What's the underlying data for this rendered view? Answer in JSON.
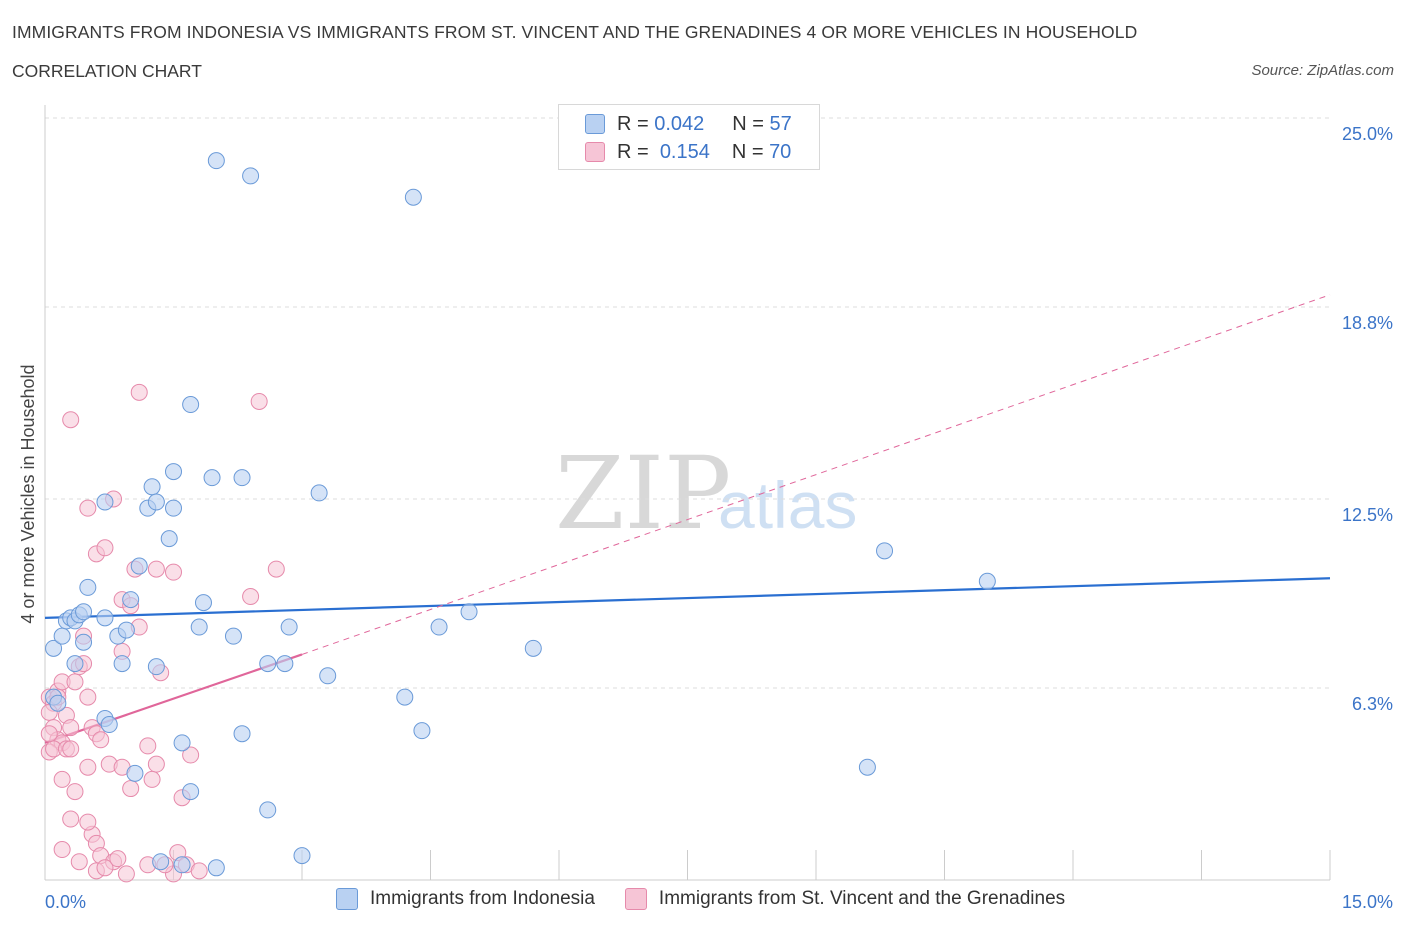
{
  "header": {
    "title": "IMMIGRANTS FROM INDONESIA VS IMMIGRANTS FROM ST. VINCENT AND THE GRENADINES 4 OR MORE VEHICLES IN HOUSEHOLD",
    "subtitle": "CORRELATION CHART",
    "source": "Source: ZipAtlas.com"
  },
  "watermark": {
    "zip": "ZIP",
    "atlas": "atlas"
  },
  "legend": {
    "rows": [
      {
        "r_label": "R =",
        "r_value": "0.042",
        "n_label": "N =",
        "n_value": "57"
      },
      {
        "r_label": "R =",
        "r_value": "0.154",
        "n_label": "N =",
        "n_value": "70"
      }
    ]
  },
  "bottom_legend": {
    "series1": "Immigrants from Indonesia",
    "series2": "Immigrants from St. Vincent and the Grenadines"
  },
  "colors": {
    "blue_fill": "#b9d1f2",
    "blue_stroke": "#6a9ad8",
    "blue_line": "#2a6fd1",
    "pink_fill": "#f6c5d6",
    "pink_stroke": "#e68aab",
    "pink_line": "#e0669a",
    "grid": "#dddddd",
    "tick_text": "#3b74c8"
  },
  "chart_data": {
    "type": "scatter",
    "title": "IMMIGRANTS FROM INDONESIA VS IMMIGRANTS FROM ST. VINCENT AND THE GRENADINES 4 OR MORE VEHICLES IN HOUSEHOLD",
    "xlabel": "",
    "ylabel": "4 or more Vehicles in Household",
    "xlim": [
      0,
      15
    ],
    "ylim": [
      0,
      25
    ],
    "x_tick_labels": [
      "0.0%",
      "15.0%"
    ],
    "y_ticks": [
      6.3,
      12.5,
      18.8,
      25.0
    ],
    "y_tick_labels": [
      "6.3%",
      "12.5%",
      "18.8%",
      "25.0%"
    ],
    "grid": true,
    "legend_position": "top-center",
    "series": [
      {
        "name": "Immigrants from Indonesia",
        "R": 0.042,
        "N": 57,
        "trend": {
          "x": [
            0,
            15
          ],
          "y": [
            8.6,
            9.9
          ],
          "style": "solid"
        },
        "points": [
          [
            0.1,
            7.6
          ],
          [
            0.2,
            8.0
          ],
          [
            0.25,
            8.5
          ],
          [
            0.3,
            8.6
          ],
          [
            0.35,
            8.5
          ],
          [
            0.4,
            8.7
          ],
          [
            0.45,
            8.8
          ],
          [
            0.5,
            9.6
          ],
          [
            0.35,
            7.1
          ],
          [
            0.45,
            7.8
          ],
          [
            0.7,
            8.6
          ],
          [
            0.85,
            8.0
          ],
          [
            0.95,
            8.2
          ],
          [
            1.0,
            9.2
          ],
          [
            1.1,
            10.3
          ],
          [
            1.2,
            12.2
          ],
          [
            1.25,
            12.9
          ],
          [
            1.3,
            12.4
          ],
          [
            1.45,
            11.2
          ],
          [
            1.5,
            12.2
          ],
          [
            1.5,
            13.4
          ],
          [
            1.7,
            15.6
          ],
          [
            1.8,
            8.3
          ],
          [
            1.85,
            9.1
          ],
          [
            1.95,
            13.2
          ],
          [
            2.2,
            8.0
          ],
          [
            2.3,
            4.8
          ],
          [
            2.3,
            13.2
          ],
          [
            2.6,
            7.1
          ],
          [
            2.8,
            7.1
          ],
          [
            2.85,
            8.3
          ],
          [
            3.2,
            12.7
          ],
          [
            3.3,
            6.7
          ],
          [
            3.0,
            0.8
          ],
          [
            0.7,
            12.4
          ],
          [
            0.9,
            7.1
          ],
          [
            1.3,
            7.0
          ],
          [
            1.6,
            4.5
          ],
          [
            1.7,
            2.9
          ],
          [
            1.05,
            3.5
          ],
          [
            0.7,
            5.3
          ],
          [
            0.75,
            5.1
          ],
          [
            0.1,
            6.0
          ],
          [
            0.15,
            5.8
          ],
          [
            1.35,
            0.6
          ],
          [
            1.6,
            0.5
          ],
          [
            2.0,
            0.4
          ],
          [
            2.6,
            2.3
          ],
          [
            2.0,
            23.6
          ],
          [
            2.4,
            23.1
          ],
          [
            4.3,
            22.4
          ],
          [
            4.6,
            8.3
          ],
          [
            4.95,
            8.8
          ],
          [
            5.7,
            7.6
          ],
          [
            4.2,
            6.0
          ],
          [
            4.4,
            4.9
          ],
          [
            9.6,
            3.7
          ],
          [
            9.8,
            10.8
          ],
          [
            11.0,
            9.8
          ]
        ]
      },
      {
        "name": "Immigrants from St. Vincent and the Grenadines",
        "R": 0.154,
        "N": 70,
        "trend": {
          "x": [
            0,
            3
          ],
          "y": [
            4.5,
            7.4
          ],
          "style": "solid",
          "extension_x": [
            3,
            15
          ],
          "extension_y": [
            7.4,
            19.2
          ],
          "extension_style": "dashed"
        },
        "points": [
          [
            0.05,
            6.0
          ],
          [
            0.1,
            5.8
          ],
          [
            0.15,
            6.2
          ],
          [
            0.2,
            6.5
          ],
          [
            0.05,
            5.5
          ],
          [
            0.1,
            5.0
          ],
          [
            0.15,
            4.6
          ],
          [
            0.2,
            4.5
          ],
          [
            0.05,
            4.2
          ],
          [
            0.1,
            4.3
          ],
          [
            0.25,
            5.4
          ],
          [
            0.3,
            5.0
          ],
          [
            0.35,
            6.5
          ],
          [
            0.4,
            7.0
          ],
          [
            0.45,
            8.0
          ],
          [
            0.5,
            6.0
          ],
          [
            0.55,
            5.0
          ],
          [
            0.6,
            4.8
          ],
          [
            0.65,
            4.6
          ],
          [
            0.3,
            15.1
          ],
          [
            0.5,
            12.2
          ],
          [
            0.6,
            10.7
          ],
          [
            0.7,
            10.9
          ],
          [
            0.8,
            12.5
          ],
          [
            0.9,
            9.2
          ],
          [
            1.0,
            9.0
          ],
          [
            1.05,
            10.2
          ],
          [
            1.1,
            8.3
          ],
          [
            1.1,
            16.0
          ],
          [
            1.3,
            10.2
          ],
          [
            1.5,
            10.1
          ],
          [
            1.35,
            6.8
          ],
          [
            0.9,
            7.5
          ],
          [
            1.2,
            4.4
          ],
          [
            1.3,
            3.8
          ],
          [
            1.25,
            3.3
          ],
          [
            1.6,
            2.7
          ],
          [
            1.7,
            4.1
          ],
          [
            0.5,
            3.7
          ],
          [
            0.35,
            2.9
          ],
          [
            0.3,
            2.0
          ],
          [
            0.55,
            1.5
          ],
          [
            0.6,
            1.2
          ],
          [
            0.65,
            0.8
          ],
          [
            0.2,
            1.0
          ],
          [
            0.4,
            0.6
          ],
          [
            0.6,
            0.3
          ],
          [
            0.8,
            0.6
          ],
          [
            0.95,
            0.2
          ],
          [
            1.0,
            3.0
          ],
          [
            1.2,
            0.5
          ],
          [
            1.55,
            0.9
          ],
          [
            1.65,
            0.5
          ],
          [
            1.8,
            0.3
          ],
          [
            1.5,
            0.2
          ],
          [
            0.7,
            0.4
          ],
          [
            0.75,
            3.8
          ],
          [
            0.9,
            3.7
          ],
          [
            2.4,
            9.3
          ],
          [
            2.5,
            15.7
          ],
          [
            2.7,
            10.2
          ],
          [
            0.2,
            3.3
          ],
          [
            0.25,
            4.3
          ],
          [
            0.5,
            1.9
          ],
          [
            0.15,
            6.0
          ],
          [
            0.05,
            4.8
          ],
          [
            0.3,
            4.3
          ],
          [
            0.45,
            7.1
          ],
          [
            0.85,
            0.7
          ],
          [
            1.4,
            0.5
          ]
        ]
      }
    ]
  }
}
